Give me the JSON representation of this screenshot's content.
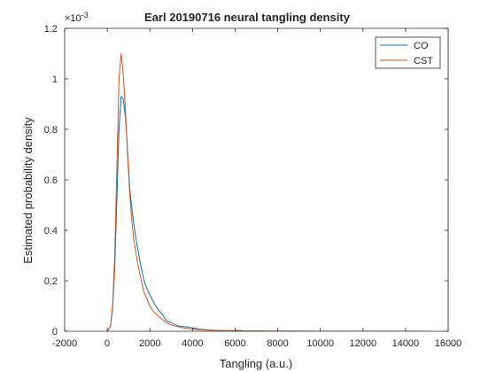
{
  "chart_data": {
    "type": "line",
    "title": "Earl 20190716 neural tangling density",
    "xlabel": "Tangling (a.u.)",
    "ylabel": "Estimated probability density",
    "y_exponent_label": "×10",
    "y_exponent_power": "-3",
    "xlim": [
      -2000,
      16000
    ],
    "ylim": [
      0,
      1.2
    ],
    "xticks": [
      -2000,
      0,
      2000,
      4000,
      6000,
      8000,
      10000,
      12000,
      14000,
      16000
    ],
    "yticks": [
      0,
      0.2,
      0.4,
      0.6,
      0.8,
      1,
      1.2
    ],
    "grid": false,
    "legend_position": "top-right",
    "series": [
      {
        "name": "CO",
        "color": "#0072BD",
        "x": [
          0,
          150,
          250,
          350,
          450,
          550,
          650,
          750,
          850,
          950,
          1050,
          1150,
          1250,
          1400,
          1550,
          1700,
          1850,
          2000,
          2200,
          2400,
          2600,
          2800,
          3000,
          3200,
          3400,
          3600,
          3800,
          4000,
          4200,
          4400,
          4600,
          4800,
          5000,
          5200,
          5400,
          5600,
          5800,
          6000,
          6100,
          6200,
          6400,
          6600,
          6800,
          7000,
          8000,
          9000,
          10000,
          11000,
          12000,
          13000,
          14000,
          15000
        ],
        "values": [
          0,
          0.02,
          0.09,
          0.25,
          0.52,
          0.8,
          0.93,
          0.92,
          0.85,
          0.72,
          0.57,
          0.49,
          0.42,
          0.34,
          0.27,
          0.21,
          0.17,
          0.145,
          0.11,
          0.085,
          0.065,
          0.04,
          0.035,
          0.025,
          0.02,
          0.018,
          0.017,
          0.013,
          0.01,
          0.008,
          0.006,
          0.005,
          0.004,
          0.003,
          0.003,
          0.002,
          0.002,
          0.002,
          0.004,
          0.003,
          0.001,
          0.001,
          0.001,
          0.001,
          0.0005,
          0.0003,
          0.0002,
          0.0001,
          0.0001,
          0.0001,
          0,
          0
        ]
      },
      {
        "name": "CST",
        "color": "#D95319",
        "x": [
          0,
          150,
          250,
          350,
          450,
          550,
          650,
          750,
          850,
          950,
          1050,
          1150,
          1250,
          1400,
          1550,
          1700,
          1850,
          2000,
          2200,
          2400,
          2600,
          2800,
          3000,
          3200,
          3400,
          3600,
          3800,
          4000,
          4200,
          4400,
          4600,
          4800,
          5000,
          5200,
          5400,
          5600,
          5800,
          6000,
          6100,
          6200,
          6400,
          6600,
          6800,
          7000,
          8000,
          9000,
          10000,
          11000,
          12000,
          13000,
          14000,
          15000
        ],
        "values": [
          0,
          0.02,
          0.1,
          0.3,
          0.65,
          1.0,
          1.1,
          1.02,
          0.88,
          0.7,
          0.55,
          0.44,
          0.36,
          0.28,
          0.22,
          0.16,
          0.13,
          0.1,
          0.075,
          0.06,
          0.045,
          0.033,
          0.025,
          0.02,
          0.016,
          0.013,
          0.011,
          0.009,
          0.007,
          0.006,
          0.005,
          0.004,
          0.003,
          0.003,
          0.002,
          0.002,
          0.002,
          0.002,
          0.002,
          0.002,
          0.001,
          0.001,
          0.001,
          0.001,
          0.0005,
          0.0003,
          0.0002,
          0.0001,
          0.0001,
          0.0001,
          0,
          0
        ]
      }
    ]
  }
}
